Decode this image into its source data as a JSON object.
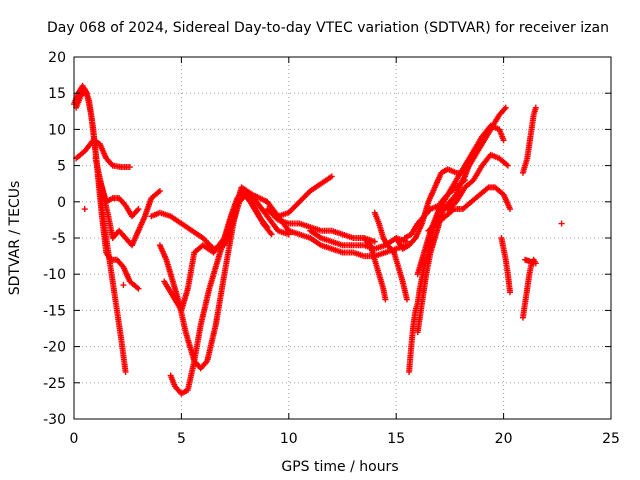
{
  "chart_data": {
    "type": "scatter",
    "title": "Day 068 of 2024, Sidereal Day-to-day VTEC variation (SDTVAR) for receiver izan",
    "xlabel": "GPS time / hours",
    "ylabel": "SDTVAR / TECUs",
    "xlim": [
      0,
      25
    ],
    "ylim": [
      -30,
      20
    ],
    "xticks": [
      0,
      5,
      10,
      15,
      20,
      25
    ],
    "yticks": [
      -30,
      -25,
      -20,
      -15,
      -10,
      -5,
      0,
      5,
      10,
      15,
      20
    ],
    "grid": true,
    "legend": "none",
    "marker": "plus",
    "color": "#ff0000",
    "series": [
      {
        "name": "trace-1",
        "points": [
          [
            0.0,
            13.5
          ],
          [
            0.2,
            15
          ],
          [
            0.4,
            16
          ],
          [
            0.6,
            15
          ],
          [
            0.8,
            12
          ],
          [
            1.0,
            7
          ],
          [
            1.2,
            2
          ],
          [
            1.4,
            -3
          ],
          [
            1.6,
            -7
          ],
          [
            1.8,
            -11
          ],
          [
            2.0,
            -15
          ],
          [
            2.2,
            -19
          ],
          [
            2.4,
            -23.5
          ]
        ]
      },
      {
        "name": "trace-2",
        "points": [
          [
            0.1,
            13
          ],
          [
            0.3,
            14.5
          ],
          [
            0.5,
            15.5
          ],
          [
            0.7,
            14
          ],
          [
            0.9,
            10
          ],
          [
            1.1,
            4
          ],
          [
            1.3,
            -2
          ],
          [
            1.5,
            -7
          ],
          [
            1.7,
            -8
          ],
          [
            2.0,
            -8
          ],
          [
            2.3,
            -9
          ],
          [
            2.6,
            -11
          ],
          [
            3.0,
            -12
          ]
        ]
      },
      {
        "name": "trace-3",
        "points": [
          [
            0.1,
            6
          ],
          [
            0.5,
            7
          ],
          [
            0.9,
            8.5
          ],
          [
            1.2,
            8
          ],
          [
            1.5,
            6
          ],
          [
            1.8,
            5
          ],
          [
            2.2,
            4.8
          ],
          [
            2.6,
            4.8
          ]
        ]
      },
      {
        "name": "trace-4",
        "points": [
          [
            1.0,
            6
          ],
          [
            1.3,
            2
          ],
          [
            1.6,
            -2
          ],
          [
            1.8,
            -5
          ],
          [
            2.1,
            -4
          ],
          [
            2.4,
            -5
          ],
          [
            2.7,
            -6
          ],
          [
            3.0,
            -4
          ],
          [
            3.3,
            -2
          ],
          [
            3.6,
            0.5
          ],
          [
            4.0,
            1.5
          ]
        ]
      },
      {
        "name": "trace-5",
        "points": [
          [
            1.2,
            3
          ],
          [
            1.5,
            0
          ],
          [
            1.8,
            0.5
          ],
          [
            2.1,
            0.5
          ],
          [
            2.4,
            -0.5
          ],
          [
            2.7,
            -2
          ],
          [
            3.0,
            -1
          ]
        ]
      },
      {
        "name": "trace-6",
        "points": [
          [
            3.6,
            -2
          ],
          [
            4.0,
            -1.5
          ],
          [
            4.5,
            -2
          ],
          [
            5.0,
            -3
          ],
          [
            5.5,
            -4
          ],
          [
            6.0,
            -5
          ],
          [
            6.5,
            -6.5
          ],
          [
            7.0,
            -6
          ],
          [
            7.4,
            -3
          ],
          [
            7.7,
            0
          ],
          [
            8.0,
            1
          ],
          [
            8.5,
            0
          ],
          [
            9.0,
            -2
          ],
          [
            9.5,
            -4
          ],
          [
            10.0,
            -4.5
          ]
        ]
      },
      {
        "name": "trace-7",
        "points": [
          [
            4.0,
            -6
          ],
          [
            4.3,
            -8
          ],
          [
            4.6,
            -11
          ],
          [
            4.9,
            -14
          ],
          [
            5.2,
            -18
          ],
          [
            5.6,
            -22
          ],
          [
            5.9,
            -23
          ],
          [
            6.2,
            -22
          ],
          [
            6.6,
            -17
          ],
          [
            7.0,
            -10
          ],
          [
            7.3,
            -5
          ],
          [
            7.6,
            0
          ],
          [
            7.8,
            1.5
          ],
          [
            8.2,
            0
          ],
          [
            8.6,
            -2
          ],
          [
            9.0,
            -3.5
          ]
        ]
      },
      {
        "name": "trace-8",
        "points": [
          [
            4.5,
            -24
          ],
          [
            4.7,
            -25.5
          ],
          [
            5.0,
            -26.5
          ],
          [
            5.3,
            -26
          ],
          [
            5.6,
            -22
          ],
          [
            5.9,
            -17
          ],
          [
            6.3,
            -12
          ],
          [
            6.7,
            -8
          ],
          [
            7.0,
            -5
          ],
          [
            7.3,
            -2
          ],
          [
            7.6,
            0.5
          ],
          [
            7.9,
            1.5
          ],
          [
            8.3,
            0
          ],
          [
            8.8,
            -3
          ],
          [
            9.2,
            -4.5
          ]
        ]
      },
      {
        "name": "trace-9",
        "points": [
          [
            4.2,
            -11
          ],
          [
            4.6,
            -13
          ],
          [
            5.0,
            -15
          ],
          [
            5.3,
            -12
          ],
          [
            5.6,
            -7
          ],
          [
            6.0,
            -6
          ],
          [
            6.5,
            -7
          ],
          [
            7.0,
            -5
          ],
          [
            7.5,
            -1
          ],
          [
            7.8,
            2
          ],
          [
            8.3,
            1
          ],
          [
            9.0,
            0
          ],
          [
            9.5,
            -2
          ],
          [
            10.0,
            -4
          ]
        ]
      },
      {
        "name": "trace-10",
        "points": [
          [
            9.5,
            -2
          ],
          [
            10.0,
            -1.5
          ],
          [
            10.5,
            0
          ],
          [
            11.0,
            1.5
          ],
          [
            11.5,
            2.5
          ],
          [
            12.0,
            3.5
          ]
        ]
      },
      {
        "name": "trace-11",
        "points": [
          [
            9.0,
            -1
          ],
          [
            9.5,
            -2.5
          ],
          [
            10.0,
            -3
          ],
          [
            10.5,
            -3
          ],
          [
            11.0,
            -3.5
          ],
          [
            11.5,
            -4
          ],
          [
            12.0,
            -4
          ],
          [
            12.5,
            -4.5
          ],
          [
            13.0,
            -5
          ],
          [
            13.5,
            -5
          ],
          [
            14.0,
            -5.5
          ]
        ]
      },
      {
        "name": "trace-12",
        "points": [
          [
            10.0,
            -4
          ],
          [
            10.5,
            -4.5
          ],
          [
            11.0,
            -5
          ],
          [
            11.5,
            -6
          ],
          [
            12.0,
            -6.5
          ],
          [
            12.5,
            -7
          ],
          [
            13.0,
            -7
          ],
          [
            13.5,
            -7.5
          ],
          [
            14.0,
            -7.5
          ],
          [
            14.5,
            -7
          ],
          [
            15.0,
            -6.5
          ],
          [
            15.5,
            -6
          ]
        ]
      },
      {
        "name": "trace-13",
        "points": [
          [
            11.0,
            -4
          ],
          [
            11.5,
            -5
          ],
          [
            12.0,
            -5.5
          ],
          [
            12.5,
            -6
          ],
          [
            13.0,
            -6
          ],
          [
            13.5,
            -6
          ],
          [
            14.0,
            -6.5
          ],
          [
            14.5,
            -6
          ],
          [
            15.0,
            -5
          ],
          [
            15.5,
            -5.5
          ]
        ]
      },
      {
        "name": "trace-14",
        "points": [
          [
            13.5,
            -5
          ],
          [
            13.8,
            -6
          ],
          [
            14.0,
            -8
          ],
          [
            14.2,
            -10
          ],
          [
            14.4,
            -12
          ],
          [
            14.5,
            -13.5
          ]
        ]
      },
      {
        "name": "trace-15",
        "points": [
          [
            14.0,
            -1.5
          ],
          [
            14.2,
            -3
          ],
          [
            14.4,
            -5
          ],
          [
            14.6,
            -6
          ],
          [
            14.9,
            -7
          ],
          [
            15.1,
            -9
          ],
          [
            15.3,
            -11
          ],
          [
            15.5,
            -13.5
          ]
        ]
      },
      {
        "name": "trace-16",
        "points": [
          [
            15.6,
            -23.5
          ],
          [
            15.7,
            -20
          ],
          [
            15.8,
            -17
          ],
          [
            15.9,
            -15
          ],
          [
            16.0,
            -14
          ],
          [
            16.1,
            -12
          ],
          [
            16.3,
            -9
          ],
          [
            16.5,
            -7
          ],
          [
            16.7,
            -4
          ],
          [
            16.9,
            -2
          ],
          [
            17.1,
            0
          ],
          [
            17.4,
            1
          ],
          [
            17.8,
            2
          ],
          [
            18.2,
            3
          ]
        ]
      },
      {
        "name": "trace-17",
        "points": [
          [
            16.0,
            -18
          ],
          [
            16.2,
            -14
          ],
          [
            16.4,
            -10
          ],
          [
            16.6,
            -7
          ],
          [
            16.9,
            -4
          ],
          [
            17.2,
            -1
          ],
          [
            17.5,
            0
          ],
          [
            17.8,
            1
          ],
          [
            18.0,
            2.5
          ],
          [
            18.2,
            3.5
          ],
          [
            18.5,
            6
          ]
        ]
      },
      {
        "name": "trace-18",
        "points": [
          [
            15.0,
            -5
          ],
          [
            15.3,
            -6.5
          ],
          [
            15.6,
            -6
          ],
          [
            15.9,
            -5
          ],
          [
            16.2,
            -3
          ],
          [
            16.5,
            0
          ],
          [
            16.8,
            2
          ],
          [
            17.1,
            4
          ],
          [
            17.4,
            4.5
          ],
          [
            17.8,
            4
          ],
          [
            18.2,
            4
          ],
          [
            18.6,
            6
          ],
          [
            19.0,
            8
          ],
          [
            19.4,
            10
          ],
          [
            19.8,
            12
          ],
          [
            20.1,
            13
          ]
        ]
      },
      {
        "name": "trace-19",
        "points": [
          [
            15.4,
            -5
          ],
          [
            15.7,
            -4.5
          ],
          [
            16.0,
            -3
          ],
          [
            16.3,
            -2
          ],
          [
            16.6,
            -1
          ],
          [
            17.0,
            -0.5
          ],
          [
            17.4,
            -1
          ],
          [
            17.8,
            0
          ],
          [
            18.2,
            2
          ],
          [
            18.6,
            3
          ],
          [
            19.0,
            5
          ],
          [
            19.4,
            6.5
          ],
          [
            19.8,
            6
          ],
          [
            20.2,
            5
          ]
        ]
      },
      {
        "name": "trace-20",
        "points": [
          [
            16.5,
            -4
          ],
          [
            16.9,
            -3
          ],
          [
            17.3,
            -2
          ],
          [
            17.7,
            -1
          ],
          [
            18.1,
            -1
          ],
          [
            18.5,
            0
          ],
          [
            18.9,
            1
          ],
          [
            19.3,
            2
          ],
          [
            19.6,
            2
          ],
          [
            20.0,
            1
          ],
          [
            20.3,
            -1
          ]
        ]
      },
      {
        "name": "trace-21",
        "points": [
          [
            16.0,
            -10
          ],
          [
            16.3,
            -7
          ],
          [
            16.6,
            -4
          ],
          [
            17.0,
            -1
          ],
          [
            17.4,
            1
          ],
          [
            17.8,
            3
          ],
          [
            18.2,
            5
          ],
          [
            18.6,
            7
          ],
          [
            19.0,
            9
          ],
          [
            19.4,
            10.5
          ],
          [
            19.8,
            10
          ],
          [
            20.0,
            8.5
          ]
        ]
      },
      {
        "name": "trace-22",
        "points": [
          [
            19.9,
            -5
          ],
          [
            20.0,
            -6.5
          ],
          [
            20.1,
            -8
          ],
          [
            20.2,
            -10
          ],
          [
            20.3,
            -12.5
          ]
        ]
      },
      {
        "name": "trace-23",
        "points": [
          [
            20.9,
            4
          ],
          [
            21.0,
            5
          ],
          [
            21.1,
            6
          ],
          [
            21.2,
            8
          ],
          [
            21.3,
            10
          ],
          [
            21.4,
            12
          ],
          [
            21.5,
            13
          ]
        ]
      },
      {
        "name": "trace-24",
        "points": [
          [
            20.9,
            -16
          ],
          [
            21.0,
            -14
          ],
          [
            21.1,
            -12
          ],
          [
            21.2,
            -10
          ],
          [
            21.3,
            -8.5
          ],
          [
            21.4,
            -8
          ],
          [
            21.5,
            -8.5
          ]
        ]
      },
      {
        "name": "trace-25",
        "points": [
          [
            21.0,
            -8
          ],
          [
            21.2,
            -8.2
          ],
          [
            21.4,
            -8.5
          ]
        ]
      },
      {
        "name": "trace-26",
        "points": [
          [
            0.5,
            -1
          ],
          [
            2.3,
            -11.5
          ],
          [
            22.7,
            -3
          ]
        ]
      }
    ]
  }
}
